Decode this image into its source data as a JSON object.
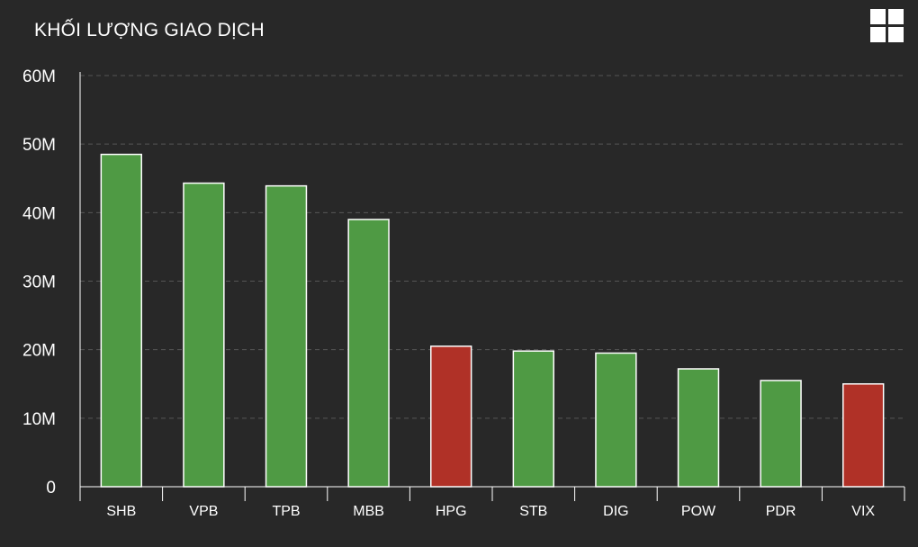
{
  "header": {
    "title": "KHỐI LƯỢNG GIAO DỊCH",
    "menu_icon": "grid-menu-icon"
  },
  "chart_data": {
    "type": "bar",
    "title": "KHỐI LƯỢNG GIAO DỊCH",
    "categories": [
      "SHB",
      "VPB",
      "TPB",
      "MBB",
      "HPG",
      "STB",
      "DIG",
      "POW",
      "PDR",
      "VIX"
    ],
    "values": [
      48500000,
      44300000,
      43900000,
      39000000,
      20500000,
      19800000,
      19500000,
      17200000,
      15500000,
      15000000
    ],
    "bar_colors": [
      "#4f9a44",
      "#4f9a44",
      "#4f9a44",
      "#4f9a44",
      "#b03127",
      "#4f9a44",
      "#4f9a44",
      "#4f9a44",
      "#4f9a44",
      "#b03127"
    ],
    "ylim": [
      0,
      60000000
    ],
    "yticks": [
      0,
      10000000,
      20000000,
      30000000,
      40000000,
      50000000,
      60000000
    ],
    "ytick_labels": [
      "0",
      "10M",
      "20M",
      "30M",
      "40M",
      "50M",
      "60M"
    ],
    "grid": true,
    "legend": "none"
  },
  "colors": {
    "background": "#282828",
    "up": "#4f9a44",
    "down": "#b03127",
    "gridline": "#555555",
    "text": "#ffffff"
  }
}
